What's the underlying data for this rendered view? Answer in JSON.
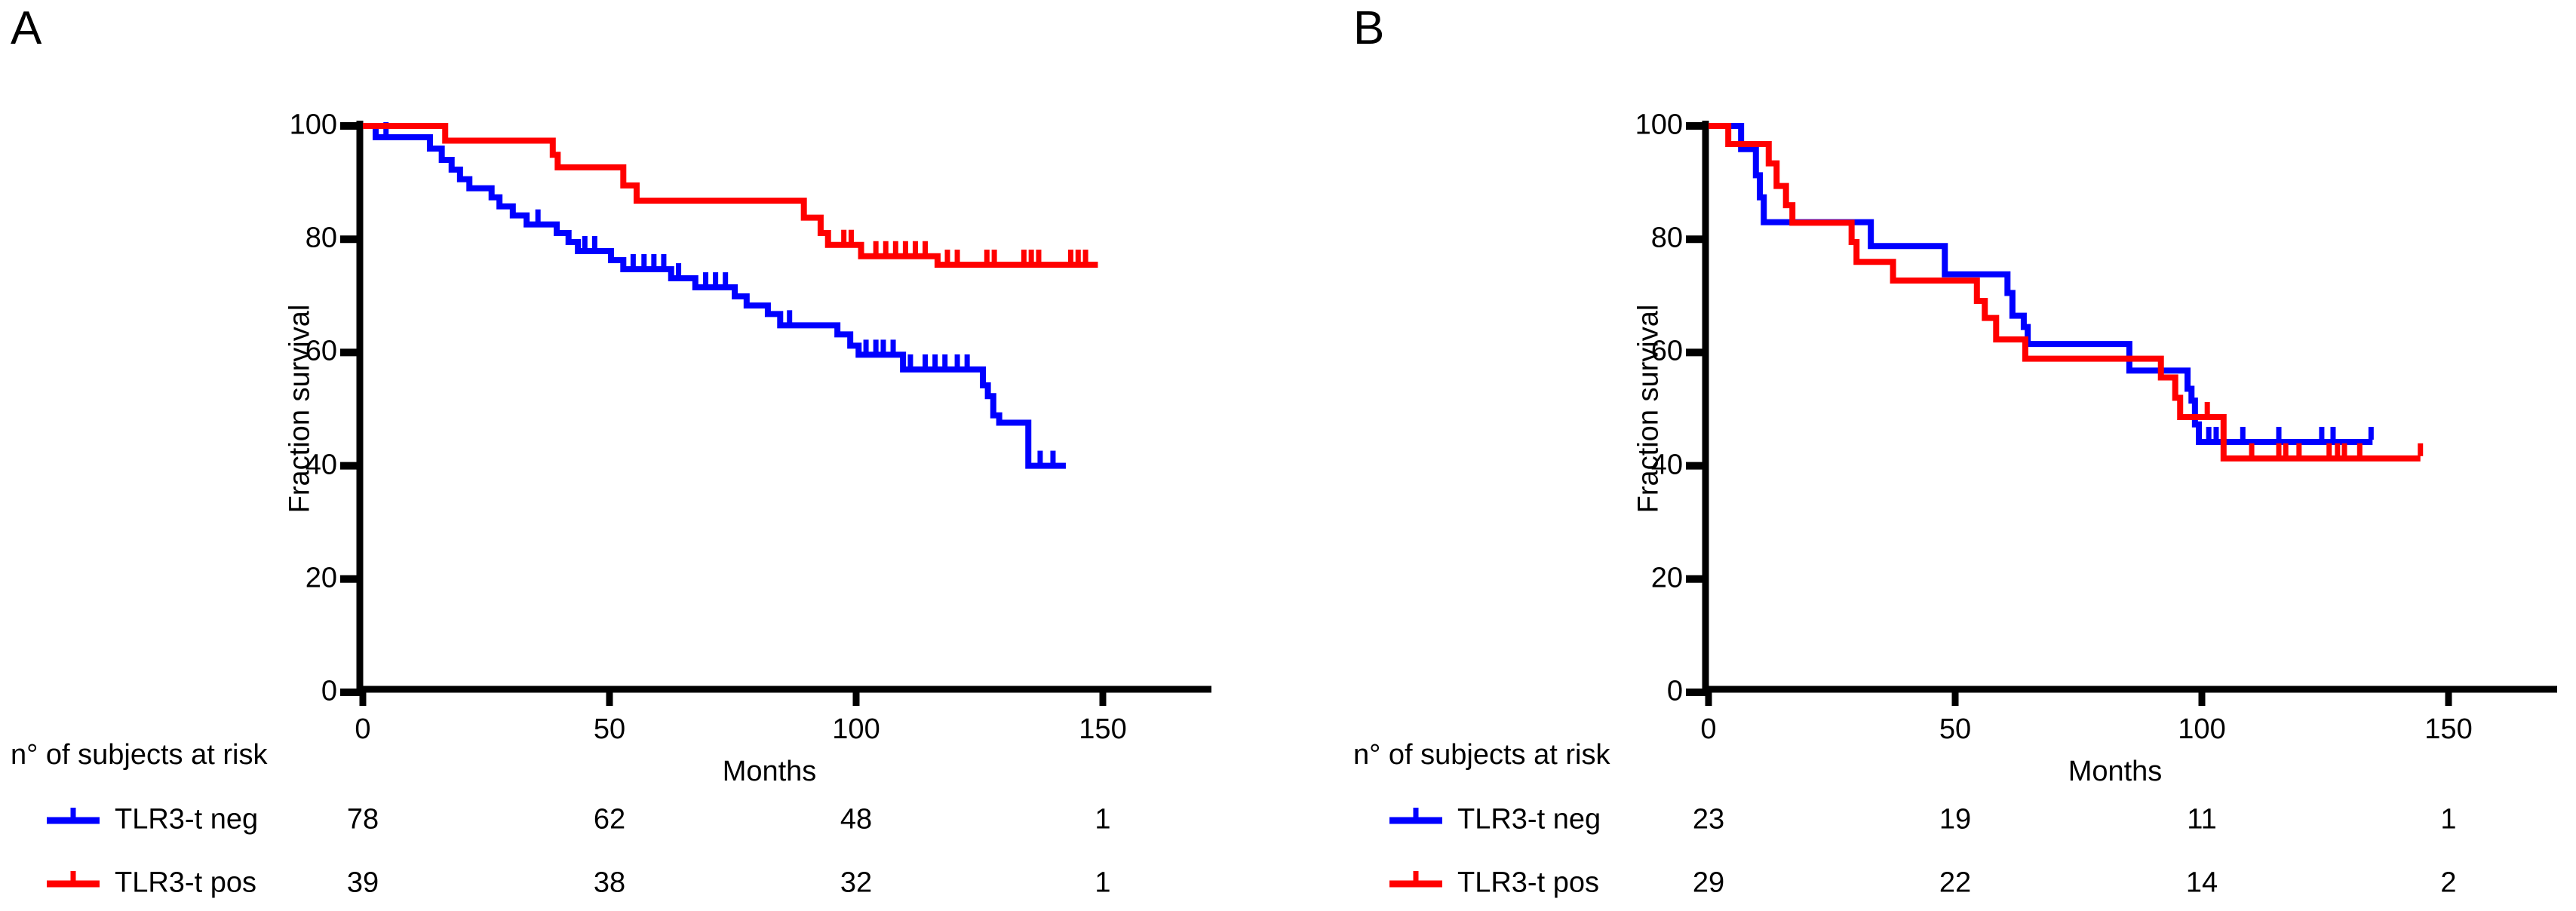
{
  "chart_data": [
    {
      "type": "line",
      "subtype": "kaplan-meier-survival",
      "panel_label": "A",
      "xlabel": "Months",
      "ylabel": "Fraction survival",
      "xlim": [
        0,
        172
      ],
      "ylim": [
        0,
        100
      ],
      "xticks": [
        0,
        50,
        100,
        150
      ],
      "yticks_top_down": [
        100,
        80,
        60,
        40,
        20,
        0
      ],
      "grid": false,
      "at_risk_header": "n° of subjects at risk",
      "at_risk_times": [
        0,
        50,
        100,
        150
      ],
      "series": [
        {
          "name": "TLR3-t neg",
          "color": "#0000ff",
          "at_risk": [
            78,
            62,
            48,
            1
          ],
          "steps": [
            [
              0,
              100
            ],
            [
              2.6,
              98
            ],
            [
              13.6,
              96
            ],
            [
              16,
              94
            ],
            [
              18,
              92.3
            ],
            [
              19.7,
              90.6
            ],
            [
              21.6,
              89
            ],
            [
              26.1,
              87.4
            ],
            [
              27.7,
              85.8
            ],
            [
              30.4,
              84.2
            ],
            [
              33.2,
              82.6
            ],
            [
              39.3,
              81.1
            ],
            [
              41.7,
              79.5
            ],
            [
              43.6,
              77.9
            ],
            [
              50.3,
              76.3
            ],
            [
              52.8,
              74.7
            ],
            [
              62.5,
              73.1
            ],
            [
              67.4,
              71.5
            ],
            [
              75.4,
              69.9
            ],
            [
              77.8,
              68.3
            ],
            [
              82.1,
              66.8
            ],
            [
              84.6,
              64.8
            ],
            [
              96.2,
              63.2
            ],
            [
              98.8,
              61.2
            ],
            [
              100.5,
              59.6
            ],
            [
              109.5,
              57
            ],
            [
              125.7,
              54.2
            ],
            [
              126.7,
              52.3
            ],
            [
              127.8,
              48.9
            ],
            [
              129,
              47.6
            ],
            [
              134.9,
              40
            ]
          ],
          "end_month": 142.5,
          "censor_months": [
            4.7,
            35.5,
            45,
            47,
            54.8,
            57,
            59,
            61,
            64,
            69.5,
            71.5,
            73.5,
            86.5,
            102,
            104,
            105.5,
            107.5,
            111,
            114,
            116,
            118,
            120.5,
            122.5,
            137.3,
            139.9
          ]
        },
        {
          "name": "TLR3-t pos",
          "color": "#ff0000",
          "at_risk": [
            39,
            38,
            32,
            1
          ],
          "steps": [
            [
              0,
              100
            ],
            [
              16.7,
              97.4
            ],
            [
              38.5,
              94.9
            ],
            [
              39.5,
              92.7
            ],
            [
              52.8,
              89.5
            ],
            [
              55.5,
              86.8
            ],
            [
              89.4,
              83.8
            ],
            [
              92.8,
              81.1
            ],
            [
              94.3,
              79
            ],
            [
              101,
              77
            ],
            [
              116.5,
              75.5
            ]
          ],
          "end_month": 149,
          "censor_months": [
            97.5,
            99,
            104,
            106,
            108,
            110,
            112,
            114,
            118.5,
            120.5,
            126.5,
            128,
            134,
            135.5,
            137,
            143.5,
            145,
            146.5
          ]
        }
      ]
    },
    {
      "type": "line",
      "subtype": "kaplan-meier-survival",
      "panel_label": "B",
      "xlabel": "Months",
      "ylabel": "Fraction survival",
      "xlim": [
        0,
        172
      ],
      "ylim": [
        0,
        100
      ],
      "xticks": [
        0,
        50,
        100,
        150
      ],
      "yticks_top_down": [
        100,
        80,
        60,
        40,
        20,
        0
      ],
      "grid": false,
      "at_risk_header": "n° of subjects at risk",
      "at_risk_times": [
        0,
        50,
        100,
        150
      ],
      "series": [
        {
          "name": "TLR3-t neg",
          "color": "#0000ff",
          "at_risk": [
            23,
            19,
            11,
            1
          ],
          "steps": [
            [
              0,
              100
            ],
            [
              6.6,
              95.9
            ],
            [
              9.6,
              91.3
            ],
            [
              10.4,
              87.4
            ],
            [
              11.2,
              83
            ],
            [
              32.9,
              78.8
            ],
            [
              47.9,
              73.8
            ],
            [
              60.6,
              70.5
            ],
            [
              61.6,
              66.5
            ],
            [
              63.9,
              64.5
            ],
            [
              64.7,
              61.5
            ],
            [
              85.3,
              56.8
            ],
            [
              97.1,
              53.6
            ],
            [
              97.9,
              51.5
            ],
            [
              98.6,
              47.3
            ],
            [
              99.4,
              44.2
            ]
          ],
          "end_month": 134.6,
          "censor_months": [
            101.4,
            102.9,
            108.3,
            115.6,
            124.3,
            126.6,
            134.3
          ]
        },
        {
          "name": "TLR3-t pos",
          "color": "#ff0000",
          "at_risk": [
            29,
            22,
            14,
            2
          ],
          "steps": [
            [
              0,
              100
            ],
            [
              4,
              96.8
            ],
            [
              12.2,
              93.4
            ],
            [
              13.8,
              89.4
            ],
            [
              15.7,
              86
            ],
            [
              17,
              82.9
            ],
            [
              29,
              79.5
            ],
            [
              30,
              76
            ],
            [
              37.4,
              72.7
            ],
            [
              54.4,
              69.1
            ],
            [
              56,
              66.1
            ],
            [
              58.3,
              62.3
            ],
            [
              64.2,
              58.9
            ],
            [
              91.7,
              55.6
            ],
            [
              94.6,
              52
            ],
            [
              95.6,
              48.6
            ],
            [
              104.4,
              41.3
            ]
          ],
          "end_month": 144.3,
          "censor_months": [
            101.1,
            110.1,
            115.6,
            117,
            119.7,
            125.8,
            127.5,
            128.9,
            132,
            144.3
          ]
        }
      ]
    }
  ]
}
